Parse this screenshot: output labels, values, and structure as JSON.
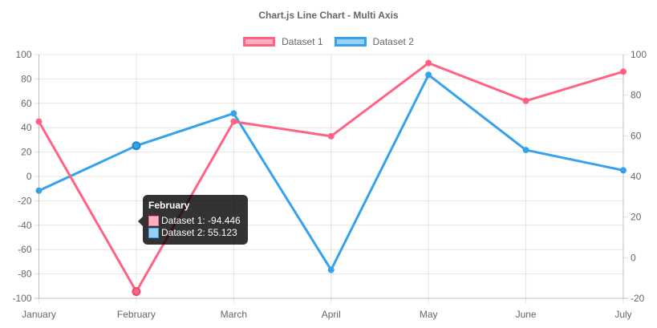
{
  "chart_data": {
    "type": "line",
    "title": "Chart.js Line Chart - Multi Axis",
    "categories": [
      "January",
      "February",
      "March",
      "April",
      "May",
      "June",
      "July"
    ],
    "series": [
      {
        "name": "Dataset 1",
        "axis": "left",
        "color": "#ff6384",
        "fill": "#ffb1c1",
        "hover_ring": "#e0516f",
        "values": [
          45,
          -94.446,
          45,
          33,
          93,
          62,
          86
        ]
      },
      {
        "name": "Dataset 2",
        "axis": "right",
        "color": "#36a2eb",
        "fill": "#9ad0f5",
        "hover_ring": "#2388cc",
        "values": [
          33,
          55.123,
          71,
          -6,
          90,
          53,
          43
        ]
      }
    ],
    "axes": {
      "left": {
        "position": "left",
        "min": -100,
        "max": 100,
        "step": 20,
        "ticks": [
          100,
          80,
          60,
          40,
          20,
          0,
          -20,
          -40,
          -60,
          -80,
          -100
        ],
        "grid": true
      },
      "right": {
        "position": "right",
        "min": -20,
        "max": 100,
        "step": 20,
        "ticks": [
          100,
          80,
          60,
          40,
          20,
          0,
          -20
        ],
        "grid": false
      }
    },
    "legend_position": "top",
    "hovered_index": 1,
    "hovered_category": "February"
  },
  "tooltip": {
    "title": "February",
    "rows": [
      {
        "text": "Dataset 1: -94.446",
        "swatch_border": "#ff6384",
        "swatch_fill": "#ffb1c1"
      },
      {
        "text": "Dataset 2: 55.123",
        "swatch_border": "#36a2eb",
        "swatch_fill": "#9ad0f5"
      }
    ]
  },
  "colors": {
    "axis_label": "#666666",
    "grid": "rgba(0,0,0,0.1)",
    "axis_border": "rgba(0,0,0,0.16)",
    "tooltip_bg": "rgba(0,0,0,0.8)"
  }
}
